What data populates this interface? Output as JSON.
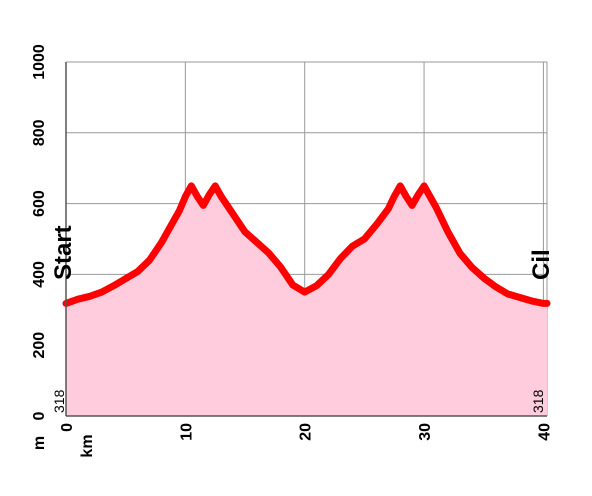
{
  "chart_data": {
    "type": "area",
    "xlabel": "km",
    "ylabel": "m",
    "xlim": [
      0,
      40.3
    ],
    "ylim": [
      0,
      1000
    ],
    "x_ticks": [
      "0",
      "10",
      "20",
      "30",
      "40"
    ],
    "y_ticks": [
      "0",
      "200",
      "400",
      "600",
      "800",
      "1000"
    ],
    "grid": true,
    "start_label": "Start",
    "end_label": "Cil",
    "start_elevation": "318",
    "end_elevation": "318",
    "fill_color": "#ffccdd",
    "line_color": "#ff0000",
    "x": [
      0,
      1,
      2,
      3,
      4,
      5,
      6,
      7,
      8,
      9,
      9.5,
      10,
      10.5,
      11,
      11.5,
      12,
      12.5,
      13,
      14,
      15,
      16,
      17,
      18,
      19,
      20,
      21,
      22,
      23,
      24,
      25,
      26,
      27,
      27.5,
      28,
      28.5,
      29,
      29.5,
      30,
      30.5,
      31,
      32,
      33,
      34,
      35,
      36,
      37,
      38,
      39,
      40,
      40.3
    ],
    "y": [
      318,
      330,
      338,
      350,
      368,
      388,
      408,
      440,
      490,
      550,
      580,
      620,
      650,
      620,
      595,
      625,
      650,
      620,
      570,
      520,
      490,
      460,
      420,
      370,
      350,
      368,
      400,
      445,
      480,
      500,
      540,
      585,
      620,
      650,
      620,
      595,
      625,
      650,
      620,
      590,
      520,
      460,
      420,
      390,
      365,
      345,
      335,
      325,
      318,
      318
    ]
  }
}
